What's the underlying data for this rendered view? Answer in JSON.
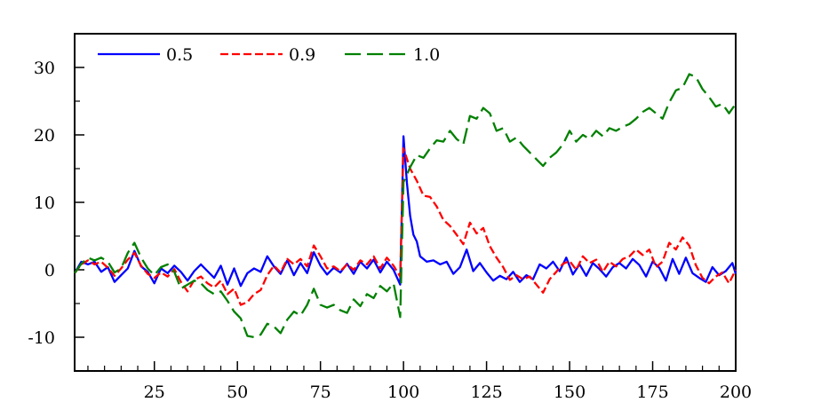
{
  "chart_data": {
    "type": "line",
    "title": "",
    "xlabel": "",
    "ylabel": "",
    "xlim": [
      1,
      200
    ],
    "ylim": [
      -15,
      35
    ],
    "x_ticks": [
      25,
      50,
      75,
      100,
      125,
      150,
      175,
      200
    ],
    "x_tick_labels": [
      "25",
      "50",
      "75",
      "100",
      "125",
      "150",
      "175",
      "200"
    ],
    "y_ticks": [
      -10,
      0,
      10,
      20,
      30
    ],
    "y_tick_labels": [
      "-10",
      "0",
      "10",
      "20",
      "30"
    ],
    "grid": false,
    "legend_position": "top-left",
    "series": [
      {
        "name": "0.5",
        "color": "#0000ff",
        "dash": "solid",
        "points": [
          [
            1,
            -0.5
          ],
          [
            3,
            1.2
          ],
          [
            5,
            0.8
          ],
          [
            7,
            1.2
          ],
          [
            9,
            -0.3
          ],
          [
            11,
            0.4
          ],
          [
            13,
            -1.8
          ],
          [
            15,
            -0.8
          ],
          [
            17,
            0.2
          ],
          [
            19,
            2.8
          ],
          [
            21,
            0.5
          ],
          [
            23,
            -0.3
          ],
          [
            25,
            -2.0
          ],
          [
            27,
            0.2
          ],
          [
            29,
            -0.5
          ],
          [
            31,
            0.6
          ],
          [
            33,
            -0.3
          ],
          [
            35,
            -1.6
          ],
          [
            37,
            -0.2
          ],
          [
            39,
            0.8
          ],
          [
            41,
            -0.2
          ],
          [
            43,
            -1.2
          ],
          [
            45,
            0.6
          ],
          [
            47,
            -2.2
          ],
          [
            49,
            0.2
          ],
          [
            51,
            -2.4
          ],
          [
            53,
            -0.5
          ],
          [
            55,
            0.2
          ],
          [
            57,
            -0.3
          ],
          [
            59,
            2.0
          ],
          [
            61,
            0.5
          ],
          [
            63,
            -0.6
          ],
          [
            65,
            1.4
          ],
          [
            67,
            -0.8
          ],
          [
            69,
            1.0
          ],
          [
            71,
            -0.5
          ],
          [
            73,
            2.6
          ],
          [
            75,
            0.6
          ],
          [
            77,
            -0.7
          ],
          [
            79,
            0.3
          ],
          [
            81,
            -0.4
          ],
          [
            83,
            0.9
          ],
          [
            85,
            -0.6
          ],
          [
            87,
            1.2
          ],
          [
            89,
            0.2
          ],
          [
            91,
            1.5
          ],
          [
            93,
            -0.4
          ],
          [
            95,
            1.2
          ],
          [
            97,
            0.0
          ],
          [
            99,
            -2.2
          ],
          [
            100,
            19.8
          ],
          [
            101,
            13.0
          ],
          [
            102,
            8.0
          ],
          [
            103,
            5.2
          ],
          [
            104,
            4.2
          ],
          [
            105,
            2.0
          ],
          [
            107,
            1.2
          ],
          [
            109,
            1.4
          ],
          [
            111,
            0.8
          ],
          [
            113,
            1.2
          ],
          [
            115,
            -0.6
          ],
          [
            117,
            0.4
          ],
          [
            119,
            3.0
          ],
          [
            121,
            -0.2
          ],
          [
            123,
            1.0
          ],
          [
            125,
            -0.4
          ],
          [
            127,
            -1.6
          ],
          [
            129,
            -0.9
          ],
          [
            131,
            -1.4
          ],
          [
            133,
            -0.3
          ],
          [
            135,
            -1.8
          ],
          [
            137,
            -0.8
          ],
          [
            139,
            -1.4
          ],
          [
            141,
            0.8
          ],
          [
            143,
            0.2
          ],
          [
            145,
            1.2
          ],
          [
            147,
            -0.2
          ],
          [
            149,
            1.8
          ],
          [
            151,
            -0.7
          ],
          [
            153,
            0.8
          ],
          [
            155,
            -0.9
          ],
          [
            157,
            1.0
          ],
          [
            159,
            0.1
          ],
          [
            161,
            -1.0
          ],
          [
            163,
            0.4
          ],
          [
            165,
            1.0
          ],
          [
            167,
            0.2
          ],
          [
            169,
            1.6
          ],
          [
            171,
            0.7
          ],
          [
            173,
            -1.0
          ],
          [
            175,
            1.2
          ],
          [
            177,
            0.3
          ],
          [
            179,
            -1.6
          ],
          [
            181,
            1.6
          ],
          [
            183,
            -0.6
          ],
          [
            185,
            1.8
          ],
          [
            187,
            -0.5
          ],
          [
            189,
            -1.2
          ],
          [
            191,
            -1.8
          ],
          [
            193,
            0.4
          ],
          [
            195,
            -0.8
          ],
          [
            197,
            -0.2
          ],
          [
            199,
            1.0
          ],
          [
            200,
            -0.6
          ]
        ]
      },
      {
        "name": "0.9",
        "color": "#ff0000",
        "dash": "short",
        "points": [
          [
            1,
            -0.5
          ],
          [
            3,
            0.8
          ],
          [
            5,
            1.4
          ],
          [
            7,
            0.8
          ],
          [
            9,
            1.2
          ],
          [
            11,
            0.3
          ],
          [
            13,
            -0.9
          ],
          [
            15,
            0.2
          ],
          [
            17,
            1.5
          ],
          [
            19,
            2.5
          ],
          [
            21,
            0.6
          ],
          [
            23,
            -0.6
          ],
          [
            25,
            -1.2
          ],
          [
            27,
            -0.4
          ],
          [
            29,
            -1.0
          ],
          [
            31,
            0.1
          ],
          [
            33,
            -1.8
          ],
          [
            35,
            -3.2
          ],
          [
            37,
            -1.5
          ],
          [
            39,
            -1.0
          ],
          [
            41,
            -2.0
          ],
          [
            43,
            -2.6
          ],
          [
            45,
            -1.6
          ],
          [
            47,
            -3.6
          ],
          [
            49,
            -2.8
          ],
          [
            51,
            -5.2
          ],
          [
            53,
            -4.8
          ],
          [
            55,
            -3.6
          ],
          [
            57,
            -3.0
          ],
          [
            59,
            -0.8
          ],
          [
            61,
            0.6
          ],
          [
            63,
            -0.4
          ],
          [
            65,
            1.6
          ],
          [
            67,
            0.8
          ],
          [
            69,
            1.6
          ],
          [
            71,
            0.5
          ],
          [
            73,
            3.6
          ],
          [
            75,
            2.0
          ],
          [
            77,
            0.2
          ],
          [
            79,
            0.5
          ],
          [
            81,
            -0.2
          ],
          [
            83,
            0.8
          ],
          [
            85,
            0.0
          ],
          [
            87,
            1.4
          ],
          [
            89,
            0.8
          ],
          [
            91,
            2.0
          ],
          [
            93,
            0.2
          ],
          [
            95,
            1.8
          ],
          [
            97,
            0.6
          ],
          [
            99,
            -1.0
          ],
          [
            100,
            18.0
          ],
          [
            102,
            15.0
          ],
          [
            104,
            13.2
          ],
          [
            106,
            11.0
          ],
          [
            108,
            10.8
          ],
          [
            110,
            9.4
          ],
          [
            112,
            7.4
          ],
          [
            114,
            6.5
          ],
          [
            116,
            5.2
          ],
          [
            118,
            3.8
          ],
          [
            120,
            7.0
          ],
          [
            122,
            5.4
          ],
          [
            124,
            6.2
          ],
          [
            126,
            3.5
          ],
          [
            128,
            1.8
          ],
          [
            130,
            0.4
          ],
          [
            132,
            -1.5
          ],
          [
            134,
            -0.8
          ],
          [
            136,
            -1.4
          ],
          [
            138,
            -1.0
          ],
          [
            140,
            -2.2
          ],
          [
            142,
            -3.4
          ],
          [
            144,
            -1.4
          ],
          [
            146,
            -0.3
          ],
          [
            148,
            0.9
          ],
          [
            150,
            1.3
          ],
          [
            152,
            0.0
          ],
          [
            154,
            2.0
          ],
          [
            156,
            1.0
          ],
          [
            158,
            1.5
          ],
          [
            160,
            -0.3
          ],
          [
            162,
            1.2
          ],
          [
            164,
            0.5
          ],
          [
            166,
            1.6
          ],
          [
            168,
            2.0
          ],
          [
            170,
            3.0
          ],
          [
            172,
            2.2
          ],
          [
            174,
            3.0
          ],
          [
            176,
            0.4
          ],
          [
            178,
            1.2
          ],
          [
            180,
            4.0
          ],
          [
            182,
            3.0
          ],
          [
            184,
            4.8
          ],
          [
            186,
            3.6
          ],
          [
            188,
            0.7
          ],
          [
            190,
            -1.2
          ],
          [
            192,
            -2.0
          ],
          [
            194,
            -1.0
          ],
          [
            196,
            -0.4
          ],
          [
            198,
            -2.0
          ],
          [
            200,
            0.0
          ]
        ]
      },
      {
        "name": "1.0",
        "color": "#008000",
        "dash": "long",
        "points": [
          [
            1,
            -0.5
          ],
          [
            3,
            0.9
          ],
          [
            5,
            1.8
          ],
          [
            7,
            1.4
          ],
          [
            9,
            1.8
          ],
          [
            11,
            1.2
          ],
          [
            13,
            -0.4
          ],
          [
            15,
            0.2
          ],
          [
            17,
            2.5
          ],
          [
            19,
            4.0
          ],
          [
            21,
            1.8
          ],
          [
            23,
            0.2
          ],
          [
            25,
            -0.8
          ],
          [
            27,
            0.4
          ],
          [
            29,
            0.8
          ],
          [
            31,
            -0.3
          ],
          [
            33,
            -2.8
          ],
          [
            35,
            -2.2
          ],
          [
            37,
            -1.6
          ],
          [
            39,
            -2.0
          ],
          [
            41,
            -3.0
          ],
          [
            43,
            -3.6
          ],
          [
            45,
            -3.2
          ],
          [
            47,
            -4.6
          ],
          [
            49,
            -6.2
          ],
          [
            51,
            -7.2
          ],
          [
            53,
            -9.8
          ],
          [
            55,
            -10.0
          ],
          [
            57,
            -9.6
          ],
          [
            59,
            -8.0
          ],
          [
            61,
            -8.4
          ],
          [
            63,
            -9.4
          ],
          [
            65,
            -7.4
          ],
          [
            67,
            -6.2
          ],
          [
            69,
            -6.8
          ],
          [
            71,
            -5.2
          ],
          [
            73,
            -2.8
          ],
          [
            75,
            -5.2
          ],
          [
            77,
            -5.6
          ],
          [
            79,
            -5.2
          ],
          [
            81,
            -6.0
          ],
          [
            83,
            -6.4
          ],
          [
            85,
            -4.4
          ],
          [
            87,
            -5.4
          ],
          [
            89,
            -3.6
          ],
          [
            91,
            -4.2
          ],
          [
            93,
            -2.4
          ],
          [
            95,
            -3.2
          ],
          [
            97,
            -2.0
          ],
          [
            99,
            -7.0
          ],
          [
            100,
            13.0
          ],
          [
            102,
            15.2
          ],
          [
            104,
            17.0
          ],
          [
            106,
            16.6
          ],
          [
            108,
            18.0
          ],
          [
            110,
            19.2
          ],
          [
            112,
            19.0
          ],
          [
            114,
            20.6
          ],
          [
            116,
            19.4
          ],
          [
            118,
            18.6
          ],
          [
            120,
            22.8
          ],
          [
            122,
            22.4
          ],
          [
            124,
            24.0
          ],
          [
            126,
            23.2
          ],
          [
            128,
            20.6
          ],
          [
            130,
            21.0
          ],
          [
            132,
            19.0
          ],
          [
            134,
            19.6
          ],
          [
            136,
            18.4
          ],
          [
            138,
            17.4
          ],
          [
            140,
            16.4
          ],
          [
            142,
            15.4
          ],
          [
            144,
            16.6
          ],
          [
            146,
            17.4
          ],
          [
            148,
            18.6
          ],
          [
            150,
            20.6
          ],
          [
            152,
            19.0
          ],
          [
            154,
            20.0
          ],
          [
            156,
            19.4
          ],
          [
            158,
            20.6
          ],
          [
            160,
            19.8
          ],
          [
            162,
            21.0
          ],
          [
            164,
            20.6
          ],
          [
            166,
            21.2
          ],
          [
            168,
            21.6
          ],
          [
            170,
            22.4
          ],
          [
            172,
            23.4
          ],
          [
            174,
            24.0
          ],
          [
            176,
            23.2
          ],
          [
            178,
            22.4
          ],
          [
            180,
            24.8
          ],
          [
            182,
            26.6
          ],
          [
            184,
            27.0
          ],
          [
            186,
            29.0
          ],
          [
            188,
            28.6
          ],
          [
            190,
            26.8
          ],
          [
            192,
            25.6
          ],
          [
            194,
            24.2
          ],
          [
            196,
            24.6
          ],
          [
            198,
            23.2
          ],
          [
            200,
            24.6
          ]
        ]
      }
    ]
  }
}
